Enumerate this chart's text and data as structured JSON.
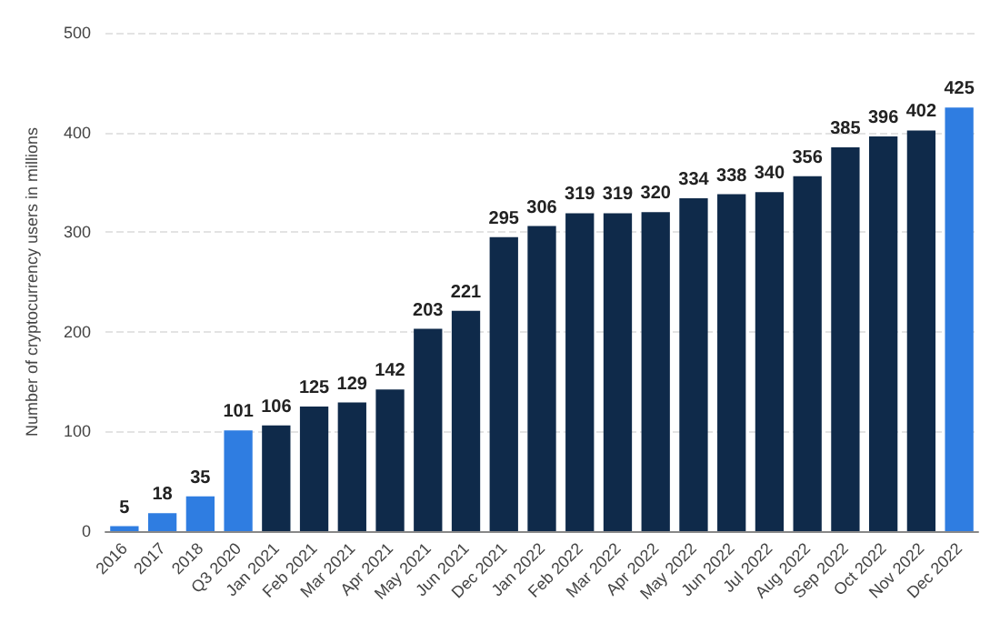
{
  "chart_data": {
    "type": "bar",
    "ylabel": "Number of cryptocurrency users in millions",
    "categories": [
      "2016",
      "2017",
      "2018",
      "Q3 2020",
      "Jan 2021",
      "Feb 2021",
      "Mar 2021",
      "Apr 2021",
      "May 2021",
      "Jun 2021",
      "Dec 2021",
      "Jan 2022",
      "Feb 2022",
      "Mar 2022",
      "Apr 2022",
      "May 2022",
      "Jun 2022",
      "Jul 2022",
      "Aug 2022",
      "Sep 2022",
      "Oct 2022",
      "Nov 2022",
      "Dec 2022"
    ],
    "values": [
      5,
      18,
      35,
      101,
      106,
      125,
      129,
      142,
      203,
      221,
      295,
      306,
      319,
      319,
      320,
      334,
      338,
      340,
      356,
      385,
      396,
      402,
      425
    ],
    "colors": [
      "#2f7de1",
      "#2f7de1",
      "#2f7de1",
      "#2f7de1",
      "#0f2a4a",
      "#0f2a4a",
      "#0f2a4a",
      "#0f2a4a",
      "#0f2a4a",
      "#0f2a4a",
      "#0f2a4a",
      "#0f2a4a",
      "#0f2a4a",
      "#0f2a4a",
      "#0f2a4a",
      "#0f2a4a",
      "#0f2a4a",
      "#0f2a4a",
      "#0f2a4a",
      "#0f2a4a",
      "#0f2a4a",
      "#0f2a4a",
      "#2f7de1"
    ],
    "ylim": [
      0,
      500
    ],
    "yticks": [
      0,
      100,
      200,
      300,
      400,
      500
    ],
    "grid": "y",
    "data_labels": true
  }
}
